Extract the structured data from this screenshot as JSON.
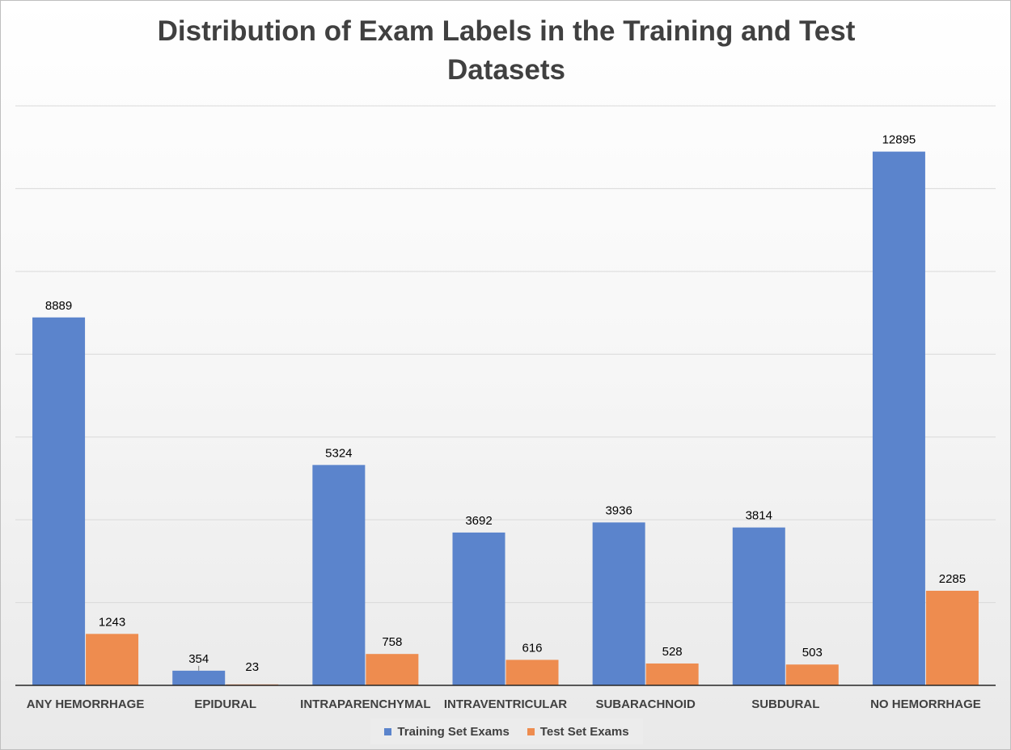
{
  "chart_data": {
    "type": "bar",
    "title": "Distribution of Exam Labels in the Training and Test Datasets",
    "categories": [
      "ANY HEMORRHAGE",
      "EPIDURAL",
      "INTRAPARENCHYMAL",
      "INTRAVENTRICULAR",
      "SUBARACHNOID",
      "SUBDURAL",
      "NO HEMORRHAGE"
    ],
    "series": [
      {
        "name": "Training Set Exams",
        "color": "#5b84cc",
        "values": [
          8889,
          354,
          5324,
          3692,
          3936,
          3814,
          12895
        ]
      },
      {
        "name": "Test Set Exams",
        "color": "#ee8c4f",
        "values": [
          1243,
          23,
          758,
          616,
          528,
          503,
          2285
        ]
      }
    ],
    "ylim": [
      0,
      14000
    ],
    "grid": true,
    "legend": "bottom"
  }
}
